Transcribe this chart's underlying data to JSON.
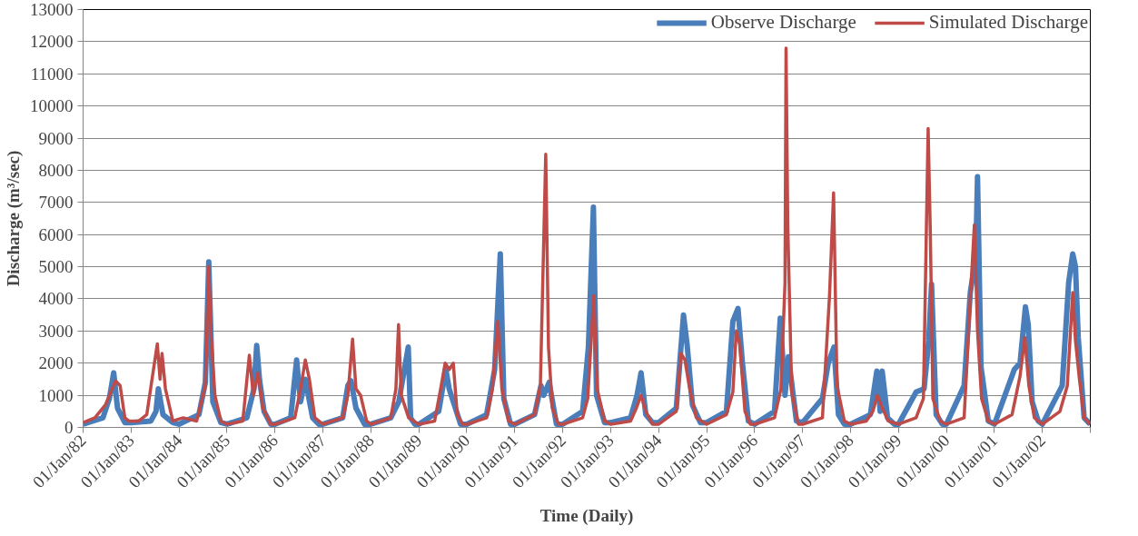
{
  "chart_data": {
    "type": "line",
    "xlabel": "Time (Daily)",
    "ylabel": "Discharge (m³/sec)",
    "xlim": [
      "1982-01-01",
      "2003-01-01"
    ],
    "xticks": [
      {
        "value": "1982-01-01",
        "label": "01/Jan/82"
      },
      {
        "value": "1983-01-01",
        "label": "01/Jan/83"
      },
      {
        "value": "1984-01-01",
        "label": "01/Jan/84"
      },
      {
        "value": "1985-01-01",
        "label": "01/Jan/85"
      },
      {
        "value": "1986-01-01",
        "label": "01/Jan/86"
      },
      {
        "value": "1987-01-01",
        "label": "01/Jan/87"
      },
      {
        "value": "1988-01-01",
        "label": "01/Jan/88"
      },
      {
        "value": "1989-01-01",
        "label": "01/Jan/89"
      },
      {
        "value": "1990-01-01",
        "label": "01/Jan/90"
      },
      {
        "value": "1991-01-01",
        "label": "01/Jan/91"
      },
      {
        "value": "1992-01-01",
        "label": "01/Jan/92"
      },
      {
        "value": "1993-01-01",
        "label": "01/Jan/93"
      },
      {
        "value": "1994-01-01",
        "label": "01/Jan/94"
      },
      {
        "value": "1995-01-01",
        "label": "01/Jan/95"
      },
      {
        "value": "1996-01-01",
        "label": "01/Jan/96"
      },
      {
        "value": "1997-01-01",
        "label": "01/Jan/97"
      },
      {
        "value": "1998-01-01",
        "label": "01/Jan/98"
      },
      {
        "value": "1999-01-01",
        "label": "01/Jan/99"
      },
      {
        "value": "2000-01-01",
        "label": "01/Jan/00"
      },
      {
        "value": "2001-01-01",
        "label": "01/Jan/01"
      },
      {
        "value": "2002-01-01",
        "label": "01/Jan/02"
      },
      {
        "value": "2003-01-01",
        "label": null
      }
    ],
    "ylim": [
      0,
      13000
    ],
    "yticks": [
      0,
      1000,
      2000,
      3000,
      4000,
      5000,
      6000,
      7000,
      8000,
      9000,
      10000,
      11000,
      12000,
      13000
    ],
    "grid": "y",
    "legend": "top",
    "line_style": "solid",
    "marker": "none",
    "series": [
      {
        "name": "Observe Discharge",
        "color": "#4a7ebb",
        "x": [
          "1982-01-01",
          "1982-06-01",
          "1982-07-20",
          "1982-08-22",
          "1982-09-20",
          "1982-11-15",
          "1983-01-01",
          "1983-06-01",
          "1983-07-10",
          "1983-07-28",
          "1983-09-01",
          "1983-11-15",
          "1984-01-01",
          "1984-06-01",
          "1984-07-20",
          "1984-08-15",
          "1984-09-15",
          "1984-11-15",
          "1985-01-01",
          "1985-06-01",
          "1985-07-25",
          "1985-08-15",
          "1985-09-05",
          "1985-10-10",
          "1985-11-30",
          "1986-01-01",
          "1986-05-01",
          "1986-06-15",
          "1986-07-15",
          "1986-08-20",
          "1986-10-15",
          "1986-12-01",
          "1987-01-01",
          "1987-06-01",
          "1987-07-10",
          "1987-08-03",
          "1987-09-10",
          "1987-11-15",
          "1988-01-01",
          "1988-06-01",
          "1988-08-01",
          "1988-10-12",
          "1988-10-30",
          "1988-12-01",
          "1989-01-01",
          "1989-06-01",
          "1989-07-25",
          "1989-08-20",
          "1989-09-20",
          "1989-11-15",
          "1990-01-01",
          "1990-06-01",
          "1990-08-01",
          "1990-09-13",
          "1990-10-10",
          "1990-11-30",
          "1991-01-01",
          "1991-06-01",
          "1991-07-20",
          "1991-08-10",
          "1991-09-20",
          "1991-11-15",
          "1992-01-01",
          "1992-06-01",
          "1992-07-15",
          "1992-08-22",
          "1992-09-15",
          "1992-11-15",
          "1993-01-01",
          "1993-06-01",
          "1993-07-20",
          "1993-08-20",
          "1993-09-25",
          "1993-11-15",
          "1994-01-01",
          "1994-05-15",
          "1994-07-09",
          "1994-08-05",
          "1994-09-15",
          "1994-11-15",
          "1995-01-01",
          "1995-06-01",
          "1995-07-20",
          "1995-08-28",
          "1995-10-01",
          "1995-11-15",
          "1996-01-01",
          "1996-06-01",
          "1996-07-15",
          "1996-08-20",
          "1996-09-15",
          "1996-11-15",
          "1997-01-01",
          "1997-06-01",
          "1997-07-15",
          "1997-08-28",
          "1997-10-01",
          "1997-11-15",
          "1998-01-01",
          "1998-06-01",
          "1998-07-20",
          "1998-08-15",
          "1998-08-30",
          "1998-10-10",
          "1998-12-01",
          "1999-01-01",
          "1999-05-15",
          "1999-07-15",
          "1999-08-20",
          "1999-09-10",
          "1999-10-15",
          "1999-12-01",
          "2000-01-01",
          "2000-05-15",
          "2000-07-01",
          "2000-08-12",
          "2000-08-25",
          "2000-09-20",
          "2000-11-15",
          "2001-01-01",
          "2001-06-01",
          "2001-07-15",
          "2001-08-25",
          "2001-09-15",
          "2001-10-15",
          "2001-11-30",
          "2002-01-01",
          "2002-06-01",
          "2002-07-20",
          "2002-08-20",
          "2002-09-10",
          "2002-10-01",
          "2002-11-15",
          "2002-12-31"
        ],
        "values": [
          100,
          300,
          900,
          1700,
          600,
          150,
          150,
          200,
          500,
          1200,
          400,
          150,
          100,
          400,
          1400,
          5150,
          800,
          150,
          100,
          300,
          1200,
          2550,
          1500,
          500,
          100,
          100,
          300,
          2100,
          800,
          1500,
          300,
          100,
          100,
          300,
          1300,
          1450,
          600,
          100,
          100,
          300,
          800,
          2500,
          300,
          100,
          100,
          500,
          1800,
          1200,
          800,
          100,
          100,
          400,
          1800,
          5400,
          900,
          100,
          100,
          400,
          1300,
          1000,
          1400,
          100,
          100,
          500,
          2500,
          6850,
          1000,
          150,
          150,
          300,
          1000,
          1700,
          400,
          150,
          150,
          600,
          3500,
          2600,
          700,
          150,
          150,
          500,
          3300,
          3700,
          2000,
          200,
          100,
          500,
          3400,
          1000,
          2200,
          200,
          150,
          900,
          2000,
          2500,
          400,
          100,
          100,
          400,
          1750,
          500,
          1750,
          300,
          100,
          100,
          1100,
          1200,
          2700,
          4450,
          400,
          100,
          100,
          1300,
          4200,
          5300,
          7800,
          1900,
          200,
          100,
          1800,
          2000,
          3750,
          3200,
          800,
          200,
          100,
          1300,
          4500,
          5400,
          5000,
          2800,
          300,
          100
        ]
      },
      {
        "name": "Simulated Discharge",
        "color": "#be4b48",
        "x": [
          "1982-01-01",
          "1982-04-01",
          "1982-06-20",
          "1982-09-05",
          "1982-10-10",
          "1982-11-15",
          "1982-12-15",
          "1983-03-01",
          "1983-05-01",
          "1983-07-20",
          "1983-08-10",
          "1983-08-25",
          "1983-09-20",
          "1983-11-15",
          "1984-02-01",
          "1984-05-15",
          "1984-07-20",
          "1984-08-15",
          "1984-09-01",
          "1984-10-01",
          "1984-11-15",
          "1985-01-01",
          "1985-05-01",
          "1985-06-20",
          "1985-07-20",
          "1985-08-25",
          "1985-10-01",
          "1985-11-30",
          "1986-01-01",
          "1986-06-01",
          "1986-07-15",
          "1986-08-20",
          "1986-09-20",
          "1986-11-01",
          "1987-01-01",
          "1987-06-01",
          "1987-07-10",
          "1987-08-15",
          "1987-09-10",
          "1987-10-15",
          "1987-11-30",
          "1988-01-01",
          "1988-06-01",
          "1988-07-10",
          "1988-07-30",
          "1988-08-20",
          "1988-10-15",
          "1989-01-01",
          "1989-05-01",
          "1989-06-20",
          "1989-07-20",
          "1989-08-20",
          "1989-09-20",
          "1989-10-20",
          "1989-12-01",
          "1990-01-01",
          "1990-06-01",
          "1990-07-15",
          "1990-08-25",
          "1990-09-25",
          "1990-11-15",
          "1991-01-01",
          "1991-06-01",
          "1991-07-15",
          "1991-08-25",
          "1991-09-15",
          "1991-10-15",
          "1991-11-30",
          "1992-01-01",
          "1992-06-01",
          "1992-07-10",
          "1992-08-25",
          "1992-09-20",
          "1992-11-15",
          "1993-01-01",
          "1993-06-01",
          "1993-07-15",
          "1993-08-20",
          "1993-09-25",
          "1993-11-15",
          "1994-01-01",
          "1994-05-15",
          "1994-06-20",
          "1994-07-20",
          "1994-08-25",
          "1994-10-15",
          "1995-01-01",
          "1995-06-01",
          "1995-07-20",
          "1995-08-15",
          "1995-09-10",
          "1995-10-20",
          "1995-12-01",
          "1996-01-01",
          "1996-06-01",
          "1996-07-20",
          "1996-08-20",
          "1996-08-28",
          "1996-09-10",
          "1996-10-10",
          "1996-11-30",
          "1997-01-01",
          "1997-06-01",
          "1997-07-25",
          "1997-08-25",
          "1997-09-20",
          "1997-11-15",
          "1998-01-01",
          "1998-05-01",
          "1998-06-20",
          "1998-07-25",
          "1998-09-01",
          "1998-10-15",
          "1999-01-01",
          "1999-05-15",
          "1999-07-10",
          "1999-08-15",
          "1999-09-01",
          "1999-09-20",
          "1999-11-15",
          "2000-01-01",
          "2000-05-15",
          "2000-07-01",
          "2000-08-01",
          "2000-08-25",
          "2000-09-25",
          "2000-11-15",
          "2001-01-01",
          "2001-05-15",
          "2001-07-15",
          "2001-08-20",
          "2001-09-20",
          "2001-11-01",
          "2002-01-01",
          "2002-05-15",
          "2002-07-10",
          "2002-08-20",
          "2002-09-10",
          "2002-10-10",
          "2002-11-15",
          "2002-12-31"
        ],
        "values": [
          150,
          300,
          700,
          1450,
          1300,
          300,
          200,
          200,
          400,
          2600,
          1500,
          2300,
          1200,
          200,
          300,
          200,
          1300,
          5000,
          2900,
          1000,
          200,
          100,
          200,
          2250,
          1000,
          1700,
          600,
          100,
          100,
          300,
          1200,
          2100,
          1500,
          300,
          100,
          300,
          1000,
          2750,
          1200,
          1000,
          200,
          100,
          300,
          1200,
          3200,
          1000,
          300,
          100,
          200,
          1300,
          2000,
          1800,
          2000,
          400,
          100,
          100,
          300,
          1200,
          3300,
          1200,
          200,
          100,
          400,
          1300,
          8500,
          2500,
          600,
          100,
          100,
          300,
          900,
          4100,
          1200,
          200,
          100,
          200,
          600,
          1000,
          500,
          100,
          100,
          500,
          2300,
          2100,
          1200,
          300,
          100,
          400,
          1100,
          3000,
          2600,
          500,
          100,
          100,
          300,
          1200,
          4500,
          11800,
          6300,
          1100,
          100,
          100,
          300,
          4100,
          7300,
          1300,
          200,
          100,
          200,
          500,
          1000,
          600,
          200,
          100,
          300,
          900,
          9300,
          6000,
          900,
          200,
          100,
          300,
          4000,
          6300,
          3000,
          900,
          200,
          100,
          400,
          1600,
          2800,
          1300,
          300,
          100,
          500,
          1300,
          4200,
          2700,
          1500,
          300,
          100
        ]
      }
    ]
  }
}
